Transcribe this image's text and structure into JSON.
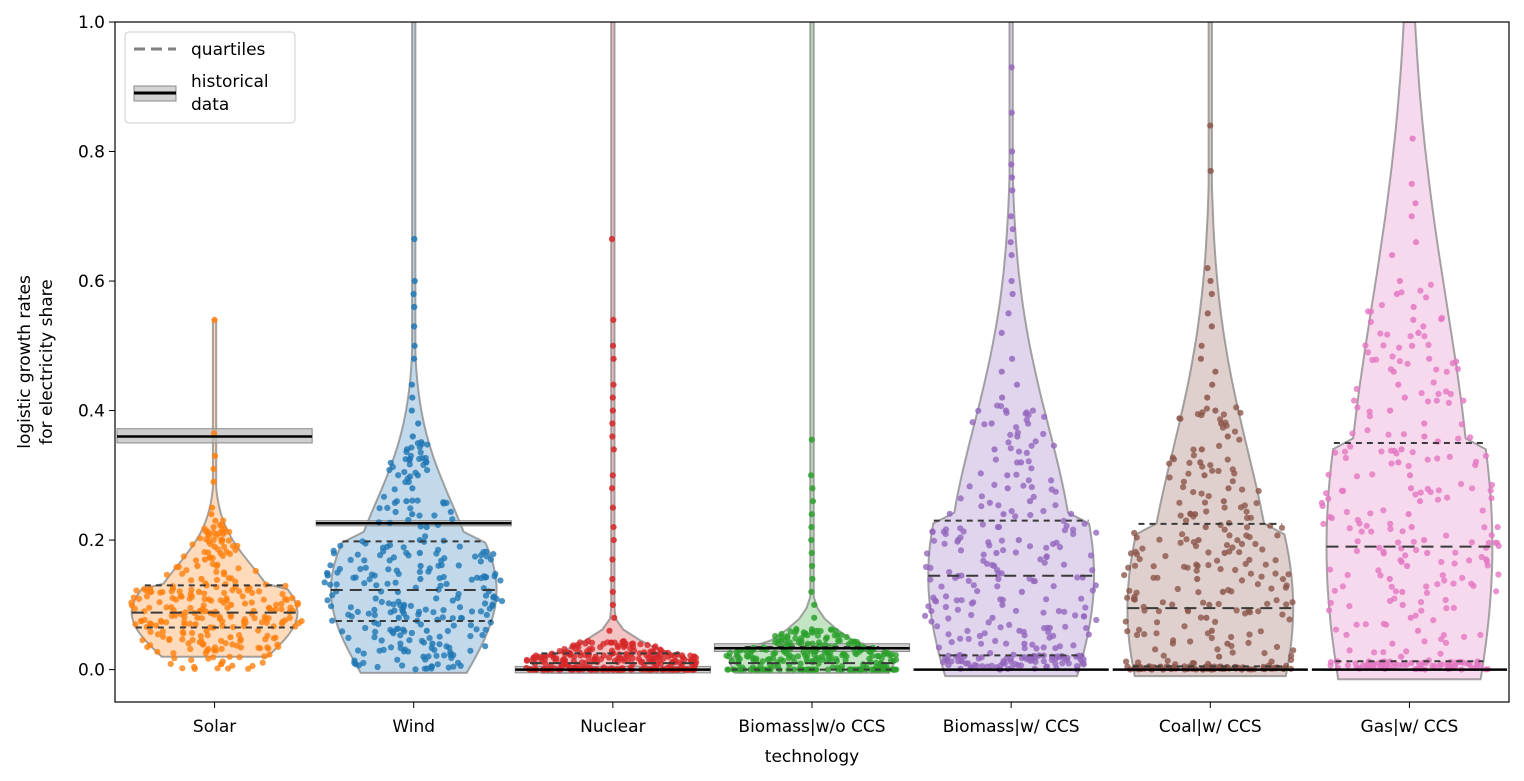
{
  "chart_data": {
    "type": "violin+swarm",
    "xlabel": "technology",
    "ylabel_lines": [
      "logistic growth rates",
      "for electricity share"
    ],
    "ylim": [
      -0.05,
      1.0
    ],
    "yticks": [
      0.0,
      0.2,
      0.4,
      0.6,
      0.8,
      1.0
    ],
    "ytick_labels": [
      "0.0",
      "0.2",
      "0.4",
      "0.6",
      "0.8",
      "1.0"
    ],
    "grid": false,
    "legend": {
      "placement": "top-left",
      "entries": [
        {
          "label": "quartiles",
          "style": "dashed-gray"
        },
        {
          "label_lines": [
            "historical",
            "data"
          ],
          "style": "black-line-gray-band"
        }
      ]
    },
    "categories": [
      {
        "name": "Solar",
        "color": "#ff7f0e",
        "q1": 0.065,
        "median": 0.088,
        "q3": 0.13,
        "historical": 0.36,
        "hist_band": [
          0.35,
          0.372
        ],
        "min": 0.02,
        "max": 0.54
      },
      {
        "name": "Wind",
        "color": "#1f77b4",
        "q1": 0.075,
        "median": 0.123,
        "q3": 0.198,
        "historical": 0.226,
        "hist_band": [
          0.222,
          0.23
        ],
        "min": -0.005,
        "max": 1.0
      },
      {
        "name": "Nuclear",
        "color": "#d62728",
        "q1": 0.0,
        "median": 0.01,
        "q3": 0.025,
        "historical": 0.0,
        "hist_band": [
          -0.005,
          0.005
        ],
        "min": -0.005,
        "max": 1.0
      },
      {
        "name": "Biomass|w/o CCS",
        "color": "#2ca02c",
        "q1": 0.0,
        "median": 0.01,
        "q3": 0.035,
        "historical": 0.033,
        "hist_band": [
          0.028,
          0.04
        ],
        "min": -0.005,
        "max": 1.0
      },
      {
        "name": "Biomass|w/ CCS",
        "color": "#9467bd",
        "q1": 0.022,
        "median": 0.145,
        "q3": 0.23,
        "historical": 0.0,
        "hist_band": [
          0.0,
          0.0
        ],
        "min": -0.01,
        "max": 1.0
      },
      {
        "name": "Coal|w/ CCS",
        "color": "#8c564b",
        "q1": 0.005,
        "median": 0.095,
        "q3": 0.225,
        "historical": 0.0,
        "hist_band": [
          0.0,
          0.0
        ],
        "min": -0.01,
        "max": 1.0
      },
      {
        "name": "Gas|w/ CCS",
        "color": "#e377c2",
        "q1": 0.013,
        "median": 0.19,
        "q3": 0.35,
        "historical": 0.0,
        "hist_band": [
          0.0,
          0.0
        ],
        "min": -0.015,
        "max": 1.0
      }
    ],
    "points": {
      "Solar": [
        0.54,
        0.365,
        0.33,
        0.31,
        0.29,
        0.25,
        0.24,
        0.23,
        0.22,
        0.21,
        0.2,
        0.19,
        0.18,
        0.17,
        0.16,
        0.15,
        0.14,
        0.13,
        0.12,
        0.11,
        0.1,
        0.09,
        0.08,
        0.07,
        0.06,
        0.05
      ],
      "Wind": [
        0.665,
        0.6,
        0.58,
        0.56,
        0.53,
        0.5,
        0.48,
        0.44,
        0.42,
        0.4,
        0.38,
        0.36,
        0.34,
        0.32,
        0.3,
        0.28,
        0.26,
        0.24,
        0.22,
        0.2,
        0.18,
        0.16,
        0.14,
        0.12,
        0.1,
        0.08,
        0.06,
        0.04,
        0.02,
        0.005
      ],
      "Nuclear": [
        0.665,
        0.54,
        0.5,
        0.48,
        0.44,
        0.42,
        0.4,
        0.38,
        0.36,
        0.34,
        0.3,
        0.28,
        0.25,
        0.22,
        0.2,
        0.17,
        0.14,
        0.12,
        0.1,
        0.08,
        0.06,
        0.04,
        0.02,
        0.0
      ],
      "Biomass|w/o CCS": [
        0.355,
        0.3,
        0.28,
        0.26,
        0.24,
        0.22,
        0.2,
        0.18,
        0.16,
        0.14,
        0.12,
        0.1,
        0.08,
        0.06,
        0.04,
        0.02,
        0.0
      ],
      "Biomass|w/ CCS": [
        0.93,
        0.86,
        0.8,
        0.78,
        0.76,
        0.74,
        0.7,
        0.68,
        0.66,
        0.64,
        0.6,
        0.58,
        0.55,
        0.52,
        0.48,
        0.46,
        0.44,
        0.42,
        0.4,
        0.38,
        0.36,
        0.34,
        0.32,
        0.3,
        0.28,
        0.26,
        0.24,
        0.22,
        0.2,
        0.18,
        0.16,
        0.14,
        0.12,
        0.1,
        0.08,
        0.06,
        0.04,
        0.02,
        0.01,
        0.0
      ],
      "Coal|w/ CCS": [
        0.84,
        0.77,
        0.62,
        0.6,
        0.58,
        0.55,
        0.53,
        0.5,
        0.48,
        0.46,
        0.44,
        0.42,
        0.4,
        0.38,
        0.36,
        0.34,
        0.32,
        0.3,
        0.28,
        0.26,
        0.24,
        0.22,
        0.2,
        0.18,
        0.16,
        0.14,
        0.12,
        0.1,
        0.08,
        0.06,
        0.04,
        0.02,
        0.01,
        0.0
      ],
      "Gas|w/ CCS": [
        0.82,
        0.75,
        0.72,
        0.7,
        0.66,
        0.64,
        0.6,
        0.58,
        0.56,
        0.54,
        0.52,
        0.5,
        0.48,
        0.46,
        0.44,
        0.42,
        0.4,
        0.38,
        0.36,
        0.34,
        0.32,
        0.3,
        0.28,
        0.26,
        0.24,
        0.22,
        0.2,
        0.18,
        0.16,
        0.14,
        0.12,
        0.1,
        0.08,
        0.06,
        0.04,
        0.02,
        0.01,
        0.0
      ]
    }
  }
}
